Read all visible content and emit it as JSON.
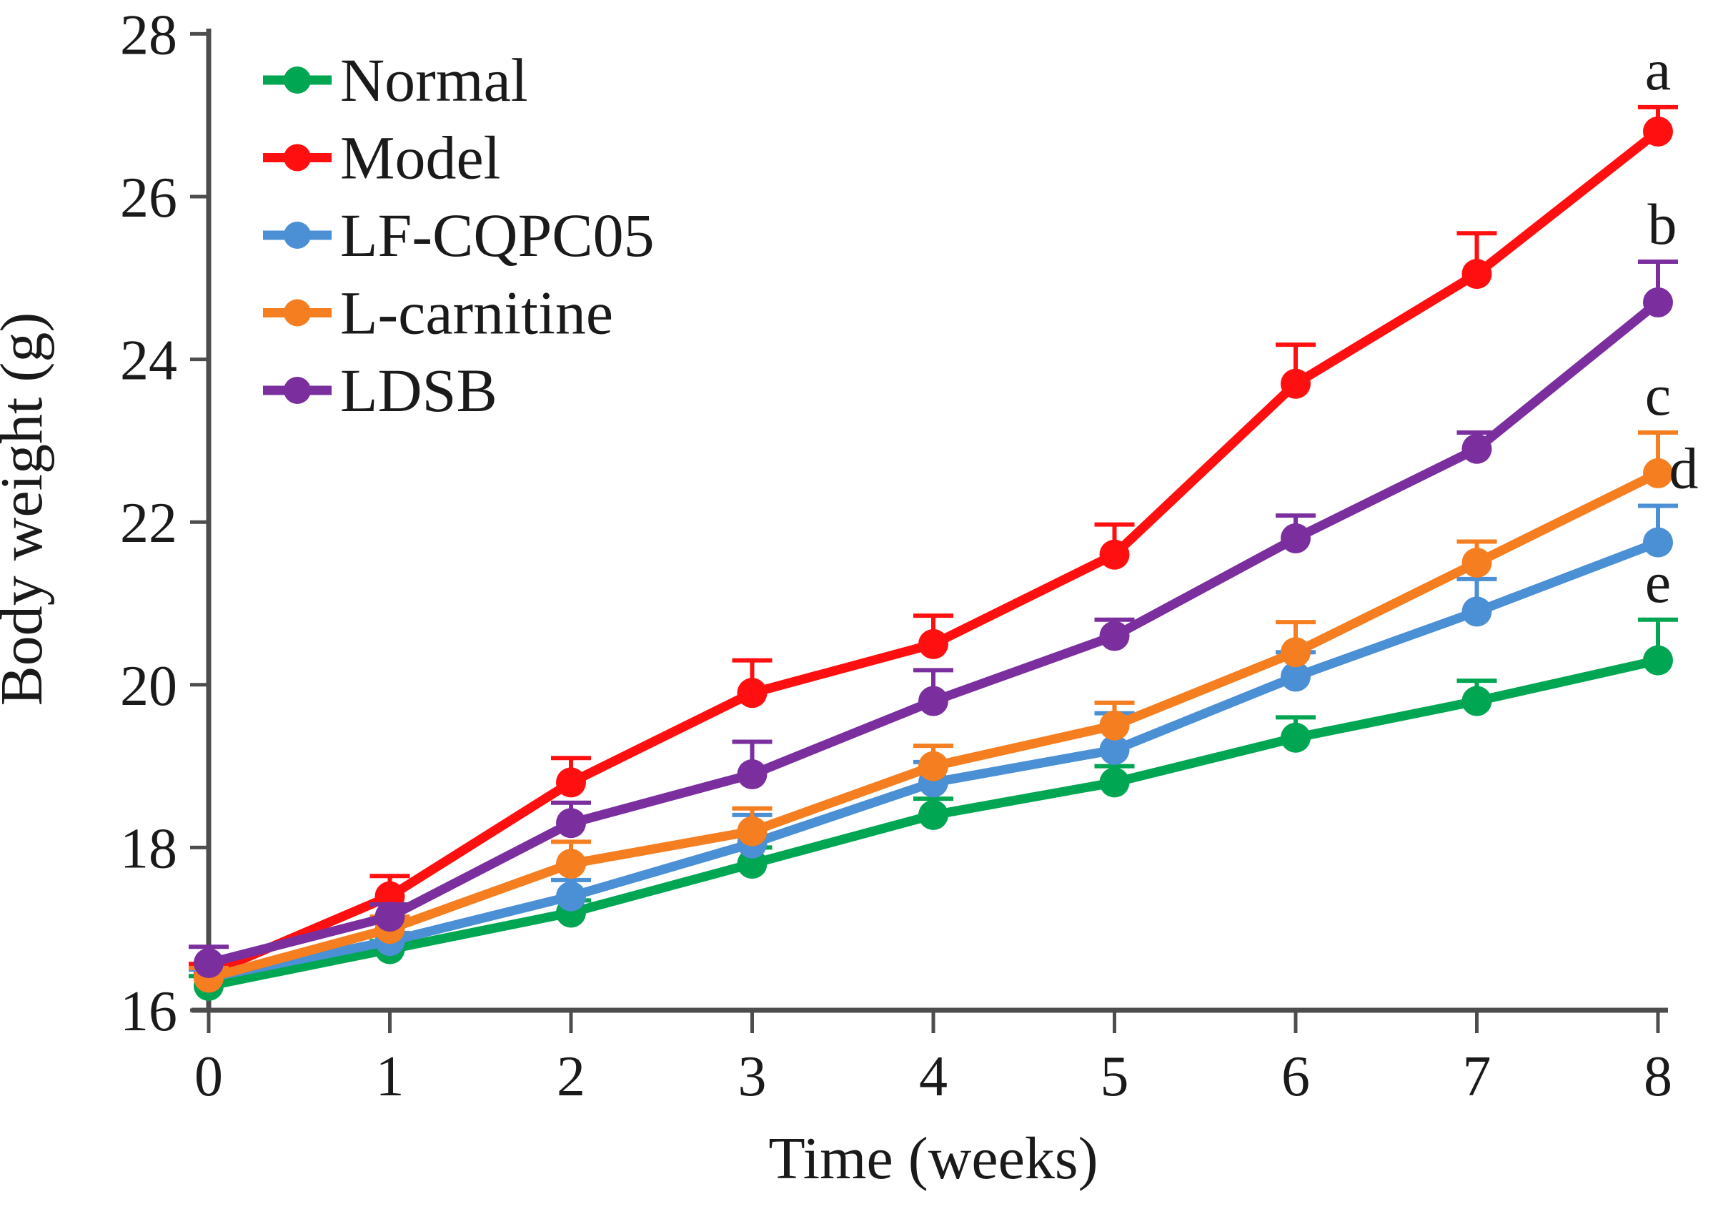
{
  "background": "#FFFFFF",
  "text_color": "#1A1A1A",
  "axis_color": "#4D4D4D",
  "chart_data": {
    "type": "line",
    "title": "",
    "xlabel": "Time (weeks)",
    "ylabel": "Body weight (g)",
    "x": [
      0,
      1,
      2,
      3,
      4,
      5,
      6,
      7,
      8
    ],
    "x_ticks": [
      "0",
      "1",
      "2",
      "3",
      "4",
      "5",
      "6",
      "7",
      "8"
    ],
    "y_ticks": [
      "16",
      "18",
      "20",
      "22",
      "24",
      "26",
      "28"
    ],
    "xlim": [
      0,
      8
    ],
    "ylim": [
      16,
      28
    ],
    "grid": false,
    "legend_position": "upper-left-inside",
    "marker": "circle",
    "error_bars": "upper",
    "series": [
      {
        "name": "Normal",
        "color": "#00A651",
        "values": [
          16.3,
          16.75,
          17.2,
          17.8,
          18.4,
          18.8,
          19.35,
          19.8,
          20.3
        ],
        "errors": [
          0.12,
          0.1,
          0.15,
          0.2,
          0.2,
          0.2,
          0.25,
          0.25,
          0.5
        ],
        "sig_label": "e"
      },
      {
        "name": "Model",
        "color": "#FF0F0F",
        "values": [
          16.45,
          17.4,
          18.8,
          19.9,
          20.5,
          21.6,
          23.7,
          25.05,
          26.8
        ],
        "errors": [
          0.12,
          0.25,
          0.3,
          0.4,
          0.35,
          0.37,
          0.48,
          0.5,
          0.3
        ],
        "sig_label": "a"
      },
      {
        "name": "LF-CQPC05",
        "color": "#4B8FD5",
        "values": [
          16.4,
          16.85,
          17.4,
          18.05,
          18.8,
          19.2,
          20.1,
          20.9,
          21.75
        ],
        "errors": [
          0.1,
          0.1,
          0.2,
          0.35,
          0.25,
          0.45,
          0.3,
          0.4,
          0.45
        ],
        "sig_label": "d"
      },
      {
        "name": "L-carnitine",
        "color": "#F57E20",
        "values": [
          16.4,
          17.0,
          17.8,
          18.2,
          19.0,
          19.5,
          20.4,
          21.5,
          22.6
        ],
        "errors": [
          0.12,
          0.15,
          0.27,
          0.28,
          0.25,
          0.28,
          0.37,
          0.26,
          0.5
        ],
        "sig_label": "c"
      },
      {
        "name": "LDSB",
        "color": "#7B2F9E",
        "values": [
          16.58,
          17.15,
          18.3,
          18.9,
          19.8,
          20.6,
          21.8,
          22.9,
          24.7
        ],
        "errors": [
          0.2,
          0.15,
          0.25,
          0.4,
          0.38,
          0.2,
          0.28,
          0.2,
          0.5
        ],
        "sig_label": "b"
      }
    ],
    "annotations": [
      {
        "label": "a",
        "series": "Model"
      },
      {
        "label": "b",
        "series": "LDSB"
      },
      {
        "label": "c",
        "series": "L-carnitine"
      },
      {
        "label": "d",
        "series": "LF-CQPC05"
      },
      {
        "label": "e",
        "series": "Normal"
      }
    ]
  }
}
